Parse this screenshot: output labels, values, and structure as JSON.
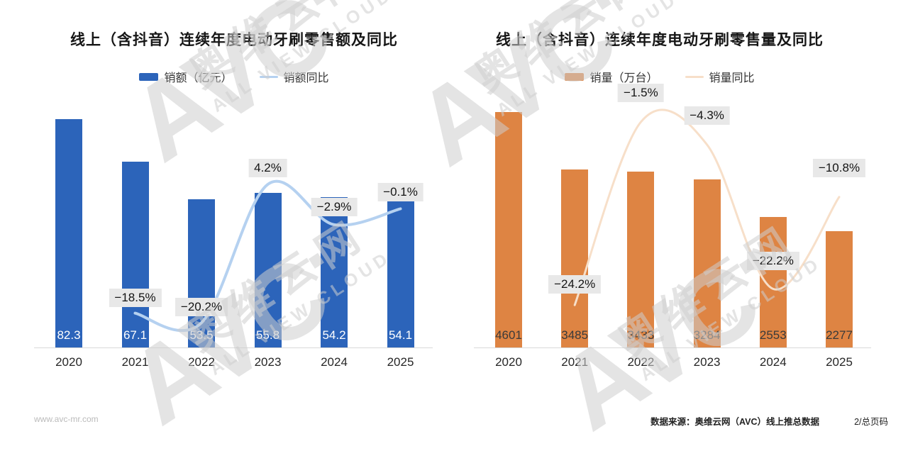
{
  "page": {
    "background": "#ffffff"
  },
  "watermark": {
    "brand": "AVC",
    "dot": "·",
    "cn": "奥维云网",
    "en": "ALL VIEW CLOUD"
  },
  "footer": {
    "website": "www.avc-mr.com",
    "source": "数据来源：奥维云网（AVC）线上推总数据",
    "page": "2/总页码"
  },
  "styles": {
    "callout_bg": "#e8e8e8",
    "callout_text": "#141414",
    "axis_color": "#d9d9d9"
  },
  "chart_data": [
    {
      "type": "bar+line",
      "title": "线上（含抖音）连续年度电动牙刷零售额及同比",
      "categories": [
        "2020",
        "2021",
        "2022",
        "2023",
        "2024",
        "2025"
      ],
      "legend_position": "top",
      "grid": false,
      "y_axis_visible": false,
      "series": [
        {
          "name": "销额（亿元）",
          "type": "bar",
          "color": "#2c64ba",
          "values": [
            82.3,
            67.1,
            53.5,
            55.8,
            54.2,
            54.1
          ],
          "value_labels": [
            "82.3",
            "67.1",
            "53.5",
            "55.8",
            "54.2",
            "54.1"
          ],
          "label_color": "#ffffff"
        },
        {
          "name": "销额同比",
          "type": "line",
          "color": "#b5d1f0",
          "unit": "%",
          "values": [
            null,
            -18.5,
            -20.2,
            4.2,
            -2.9,
            -0.1
          ],
          "value_labels": [
            "",
            "−18.5%",
            "−20.2%",
            "4.2%",
            "−2.9%",
            "−0.1%"
          ]
        }
      ]
    },
    {
      "type": "bar+line",
      "title": "线上（含抖音）连续年度电动牙刷零售量及同比",
      "categories": [
        "2020",
        "2021",
        "2022",
        "2023",
        "2024",
        "2025"
      ],
      "legend_position": "top",
      "grid": false,
      "y_axis_visible": false,
      "series": [
        {
          "name": "销量（万台）",
          "type": "bar",
          "color": "#de8443",
          "values": [
            4601,
            3485,
            3433,
            3284,
            2553,
            2277
          ],
          "value_labels": [
            "4601",
            "3485",
            "3433",
            "3284",
            "2553",
            "2277"
          ],
          "label_color": "#3a3a3a"
        },
        {
          "name": "销量同比",
          "type": "line",
          "color": "#f7dfc9",
          "unit": "%",
          "values": [
            null,
            -24.2,
            -1.5,
            -4.3,
            -22.2,
            -10.8
          ],
          "value_labels": [
            "",
            "−24.2%",
            "−1.5%",
            "−4.3%",
            "−22.2%",
            "−10.8%"
          ]
        }
      ]
    }
  ]
}
